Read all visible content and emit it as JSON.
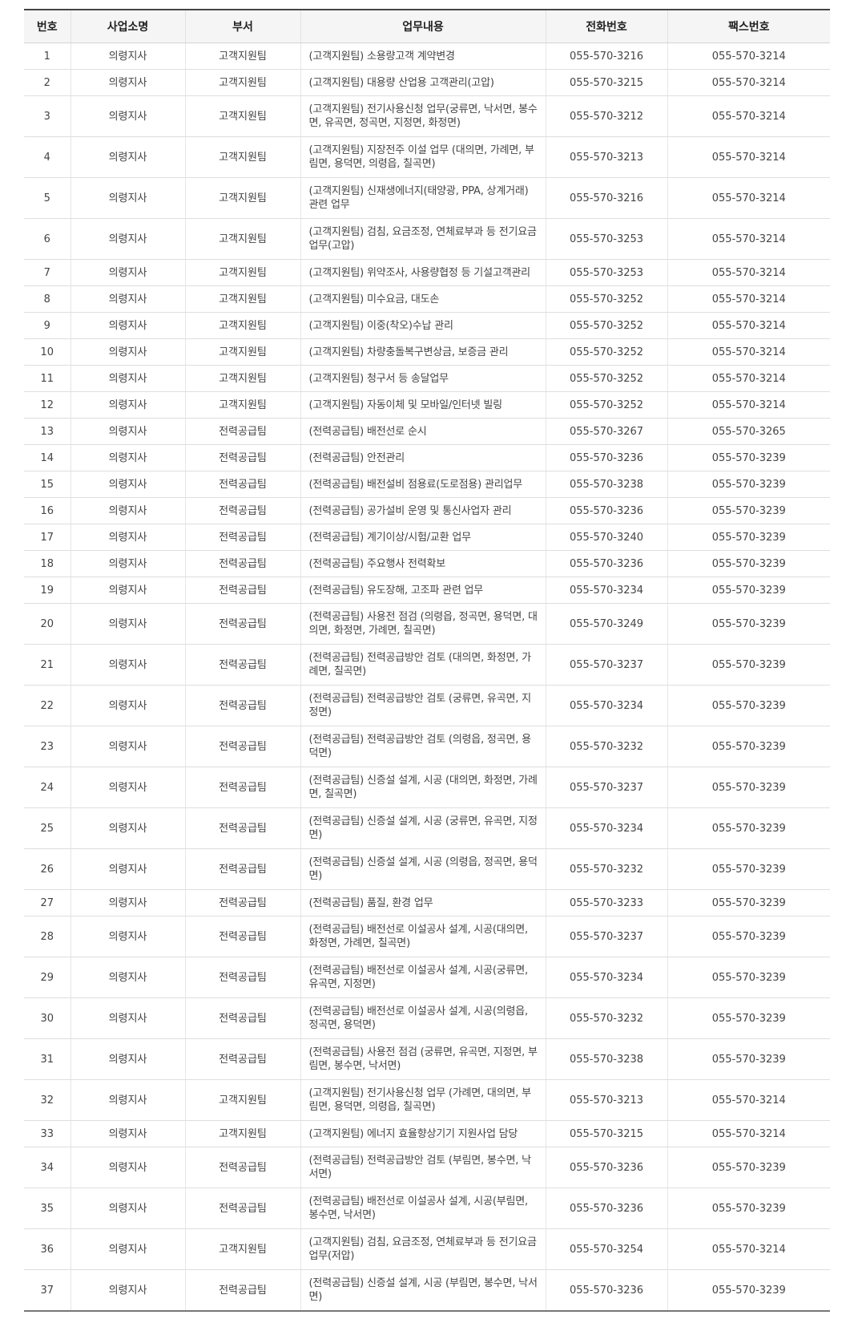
{
  "table": {
    "headers": [
      "번호",
      "사업소명",
      "부서",
      "업무내용",
      "전화번호",
      "팩스번호"
    ],
    "rows": [
      {
        "no": "1",
        "office": "의령지사",
        "dept": "고객지원팀",
        "task": "(고객지원팀) 소용량고객 계약변경",
        "phone": "055-570-3216",
        "fax": "055-570-3214"
      },
      {
        "no": "2",
        "office": "의령지사",
        "dept": "고객지원팀",
        "task": "(고객지원팀) 대용량 산업용 고객관리(고압)",
        "phone": "055-570-3215",
        "fax": "055-570-3214"
      },
      {
        "no": "3",
        "office": "의령지사",
        "dept": "고객지원팀",
        "task": "(고객지원팀) 전기사용신청 업무(궁류면, 낙서면, 봉수면, 유곡면, 정곡면, 지정면, 화정면)",
        "phone": "055-570-3212",
        "fax": "055-570-3214"
      },
      {
        "no": "4",
        "office": "의령지사",
        "dept": "고객지원팀",
        "task": "(고객지원팀) 지장전주 이설 업무 (대의면, 가례면, 부림면, 용덕면, 의령읍, 칠곡면)",
        "phone": "055-570-3213",
        "fax": "055-570-3214"
      },
      {
        "no": "5",
        "office": "의령지사",
        "dept": "고객지원팀",
        "task": "(고객지원팀) 신재생에너지(태양광, PPA, 상계거래) 관련 업무",
        "phone": "055-570-3216",
        "fax": "055-570-3214"
      },
      {
        "no": "6",
        "office": "의령지사",
        "dept": "고객지원팀",
        "task": "(고객지원팀) 검침, 요금조정, 연체료부과 등 전기요금업무(고압)",
        "phone": "055-570-3253",
        "fax": "055-570-3214"
      },
      {
        "no": "7",
        "office": "의령지사",
        "dept": "고객지원팀",
        "task": "(고객지원팀) 위약조사, 사용량협정 등 기설고객관리",
        "phone": "055-570-3253",
        "fax": "055-570-3214"
      },
      {
        "no": "8",
        "office": "의령지사",
        "dept": "고객지원팀",
        "task": "(고객지원팀) 미수요금, 대도손",
        "phone": "055-570-3252",
        "fax": "055-570-3214"
      },
      {
        "no": "9",
        "office": "의령지사",
        "dept": "고객지원팀",
        "task": "(고객지원팀) 이중(착오)수납 관리",
        "phone": "055-570-3252",
        "fax": "055-570-3214"
      },
      {
        "no": "10",
        "office": "의령지사",
        "dept": "고객지원팀",
        "task": "(고객지원팀) 차량충돌복구변상금, 보증금 관리",
        "phone": "055-570-3252",
        "fax": "055-570-3214"
      },
      {
        "no": "11",
        "office": "의령지사",
        "dept": "고객지원팀",
        "task": "(고객지원팀) 청구서 등 송달업무",
        "phone": "055-570-3252",
        "fax": "055-570-3214"
      },
      {
        "no": "12",
        "office": "의령지사",
        "dept": "고객지원팀",
        "task": "(고객지원팀) 자동이체 및 모바일/인터넷 빌링",
        "phone": "055-570-3252",
        "fax": "055-570-3214"
      },
      {
        "no": "13",
        "office": "의령지사",
        "dept": "전력공급팀",
        "task": "(전력공급팀) 배전선로 순시",
        "phone": "055-570-3267",
        "fax": "055-570-3265"
      },
      {
        "no": "14",
        "office": "의령지사",
        "dept": "전력공급팀",
        "task": "(전력공급팀) 안전관리",
        "phone": "055-570-3236",
        "fax": "055-570-3239"
      },
      {
        "no": "15",
        "office": "의령지사",
        "dept": "전력공급팀",
        "task": "(전력공급팀) 배전설비 점용료(도로점용) 관리업무",
        "phone": "055-570-3238",
        "fax": "055-570-3239"
      },
      {
        "no": "16",
        "office": "의령지사",
        "dept": "전력공급팀",
        "task": "(전력공급팀) 공가설비 운영 및 통신사업자 관리",
        "phone": "055-570-3236",
        "fax": "055-570-3239"
      },
      {
        "no": "17",
        "office": "의령지사",
        "dept": "전력공급팀",
        "task": "(전력공급팀) 계기이상/시험/교환 업무",
        "phone": "055-570-3240",
        "fax": "055-570-3239"
      },
      {
        "no": "18",
        "office": "의령지사",
        "dept": "전력공급팀",
        "task": "(전력공급팀) 주요행사 전력확보",
        "phone": "055-570-3236",
        "fax": "055-570-3239"
      },
      {
        "no": "19",
        "office": "의령지사",
        "dept": "전력공급팀",
        "task": "(전력공급팀) 유도장해, 고조파 관련 업무",
        "phone": "055-570-3234",
        "fax": "055-570-3239"
      },
      {
        "no": "20",
        "office": "의령지사",
        "dept": "전력공급팀",
        "task": "(전력공급팀) 사용전 점검 (의령읍, 정곡면, 용덕면, 대의면, 화정면, 가례면, 칠곡면)",
        "phone": "055-570-3249",
        "fax": "055-570-3239"
      },
      {
        "no": "21",
        "office": "의령지사",
        "dept": "전력공급팀",
        "task": "(전력공급팀) 전력공급방안 검토 (대의면, 화정면, 가례면, 칠곡면)",
        "phone": "055-570-3237",
        "fax": "055-570-3239"
      },
      {
        "no": "22",
        "office": "의령지사",
        "dept": "전력공급팀",
        "task": "(전력공급팀) 전력공급방안 검토 (궁류면, 유곡면, 지정면)",
        "phone": "055-570-3234",
        "fax": "055-570-3239"
      },
      {
        "no": "23",
        "office": "의령지사",
        "dept": "전력공급팀",
        "task": "(전력공급팀) 전력공급방안 검토 (의령읍, 정곡면, 용덕면)",
        "phone": "055-570-3232",
        "fax": "055-570-3239"
      },
      {
        "no": "24",
        "office": "의령지사",
        "dept": "전력공급팀",
        "task": "(전력공급팀) 신증설 설계, 시공 (대의면, 화정면, 가례면, 칠곡면)",
        "phone": "055-570-3237",
        "fax": "055-570-3239"
      },
      {
        "no": "25",
        "office": "의령지사",
        "dept": "전력공급팀",
        "task": "(전력공급팀) 신증설 설계, 시공 (궁류면, 유곡면, 지정면)",
        "phone": "055-570-3234",
        "fax": "055-570-3239"
      },
      {
        "no": "26",
        "office": "의령지사",
        "dept": "전력공급팀",
        "task": "(전력공급팀) 신증설 설계, 시공 (의령읍, 정곡면, 용덕면)",
        "phone": "055-570-3232",
        "fax": "055-570-3239"
      },
      {
        "no": "27",
        "office": "의령지사",
        "dept": "전력공급팀",
        "task": "(전력공급팀) 품질, 환경 업무",
        "phone": "055-570-3233",
        "fax": "055-570-3239"
      },
      {
        "no": "28",
        "office": "의령지사",
        "dept": "전력공급팀",
        "task": "(전력공급팀) 배전선로 이설공사 설계, 시공(대의면, 화정면, 가례면, 칠곡면)",
        "phone": "055-570-3237",
        "fax": "055-570-3239"
      },
      {
        "no": "29",
        "office": "의령지사",
        "dept": "전력공급팀",
        "task": "(전력공급팀) 배전선로 이설공사 설계, 시공(궁류면, 유곡면, 지정면)",
        "phone": "055-570-3234",
        "fax": "055-570-3239"
      },
      {
        "no": "30",
        "office": "의령지사",
        "dept": "전력공급팀",
        "task": "(전력공급팀) 배전선로 이설공사 설계, 시공(의령읍, 정곡면, 용덕면)",
        "phone": "055-570-3232",
        "fax": "055-570-3239"
      },
      {
        "no": "31",
        "office": "의령지사",
        "dept": "전력공급팀",
        "task": "(전력공급팀) 사용전 점검 (궁류면, 유곡면, 지정면, 부림면, 봉수면, 낙서면)",
        "phone": "055-570-3238",
        "fax": "055-570-3239"
      },
      {
        "no": "32",
        "office": "의령지사",
        "dept": "고객지원팀",
        "task": "(고객지원팀) 전기사용신청 업무 (가례면, 대의면, 부림면, 용덕면, 의령읍, 칠곡면)",
        "phone": "055-570-3213",
        "fax": "055-570-3214"
      },
      {
        "no": "33",
        "office": "의령지사",
        "dept": "고객지원팀",
        "task": "(고객지원팀) 에너지 효율향상기기 지원사업 담당",
        "phone": "055-570-3215",
        "fax": "055-570-3214"
      },
      {
        "no": "34",
        "office": "의령지사",
        "dept": "전력공급팀",
        "task": "(전력공급팀) 전력공급방안 검토 (부림면, 봉수면, 낙서면)",
        "phone": "055-570-3236",
        "fax": "055-570-3239"
      },
      {
        "no": "35",
        "office": "의령지사",
        "dept": "전력공급팀",
        "task": "(전력공급팀) 배전선로 이설공사 설계, 시공(부림면, 봉수면, 낙서면)",
        "phone": "055-570-3236",
        "fax": "055-570-3239"
      },
      {
        "no": "36",
        "office": "의령지사",
        "dept": "고객지원팀",
        "task": "(고객지원팀) 검침, 요금조정, 연체료부과 등 전기요금업무(저압)",
        "phone": "055-570-3254",
        "fax": "055-570-3214"
      },
      {
        "no": "37",
        "office": "의령지사",
        "dept": "전력공급팀",
        "task": "(전력공급팀) 신증설 설계, 시공 (부림면, 봉수면, 낙서면)",
        "phone": "055-570-3236",
        "fax": "055-570-3239"
      }
    ]
  }
}
